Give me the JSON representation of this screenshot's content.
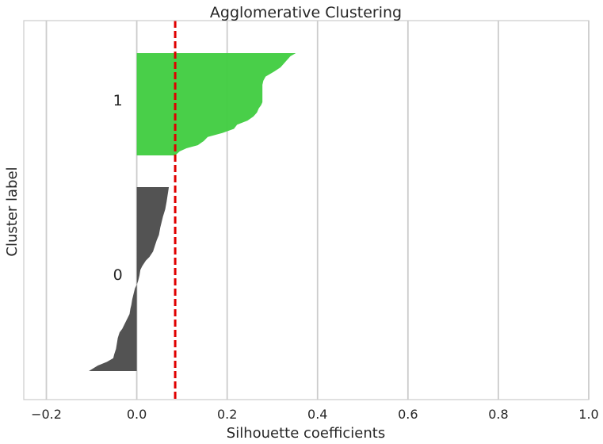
{
  "chart_data": {
    "type": "area",
    "title": "Agglomerative Clustering",
    "xlabel": "Silhouette coefficients",
    "ylabel": "Cluster label",
    "xlim": [
      -0.25,
      1.0
    ],
    "xticks": [
      -0.2,
      0.0,
      0.2,
      0.4,
      0.6,
      0.8,
      1.0
    ],
    "xtick_labels": [
      "−0.2",
      "0.0",
      "0.2",
      "0.4",
      "0.6",
      "0.8",
      "1.0"
    ],
    "grid": true,
    "average_silhouette": 0.085,
    "average_line_color": "#e00000",
    "clusters": [
      {
        "label": "0",
        "color": "#4a4a4a",
        "silhouette_profile": [
          [
            0.0,
            0.071
          ],
          [
            0.08,
            0.066
          ],
          [
            0.12,
            0.063
          ],
          [
            0.16,
            0.058
          ],
          [
            0.19,
            0.055
          ],
          [
            0.22,
            0.052
          ],
          [
            0.26,
            0.049
          ],
          [
            0.29,
            0.044
          ],
          [
            0.32,
            0.04
          ],
          [
            0.35,
            0.036
          ],
          [
            0.38,
            0.028
          ],
          [
            0.4,
            0.02
          ],
          [
            0.43,
            0.012
          ],
          [
            0.45,
            0.008
          ],
          [
            0.48,
            0.006
          ],
          [
            0.51,
            0.003
          ],
          [
            0.53,
            0.0
          ],
          [
            0.55,
            -0.004
          ],
          [
            0.58,
            -0.007
          ],
          [
            0.61,
            -0.01
          ],
          [
            0.64,
            -0.012
          ],
          [
            0.66,
            -0.014
          ],
          [
            0.69,
            -0.016
          ],
          [
            0.71,
            -0.02
          ],
          [
            0.74,
            -0.026
          ],
          [
            0.77,
            -0.032
          ],
          [
            0.79,
            -0.038
          ],
          [
            0.82,
            -0.042
          ],
          [
            0.85,
            -0.044
          ],
          [
            0.88,
            -0.046
          ],
          [
            0.91,
            -0.05
          ],
          [
            0.93,
            -0.052
          ],
          [
            0.95,
            -0.066
          ],
          [
            0.97,
            -0.086
          ],
          [
            1.0,
            -0.106
          ]
        ]
      },
      {
        "label": "1",
        "color": "#3fcc3f",
        "silhouette_profile": [
          [
            0.0,
            0.352
          ],
          [
            0.03,
            0.34
          ],
          [
            0.07,
            0.332
          ],
          [
            0.1,
            0.326
          ],
          [
            0.14,
            0.318
          ],
          [
            0.18,
            0.304
          ],
          [
            0.23,
            0.285
          ],
          [
            0.27,
            0.28
          ],
          [
            0.31,
            0.278
          ],
          [
            0.35,
            0.278
          ],
          [
            0.4,
            0.278
          ],
          [
            0.44,
            0.278
          ],
          [
            0.48,
            0.278
          ],
          [
            0.51,
            0.275
          ],
          [
            0.54,
            0.27
          ],
          [
            0.58,
            0.266
          ],
          [
            0.62,
            0.258
          ],
          [
            0.66,
            0.245
          ],
          [
            0.7,
            0.222
          ],
          [
            0.74,
            0.215
          ],
          [
            0.78,
            0.19
          ],
          [
            0.82,
            0.157
          ],
          [
            0.86,
            0.148
          ],
          [
            0.9,
            0.135
          ],
          [
            0.93,
            0.11
          ],
          [
            0.96,
            0.095
          ],
          [
            1.0,
            0.085
          ]
        ]
      }
    ]
  }
}
